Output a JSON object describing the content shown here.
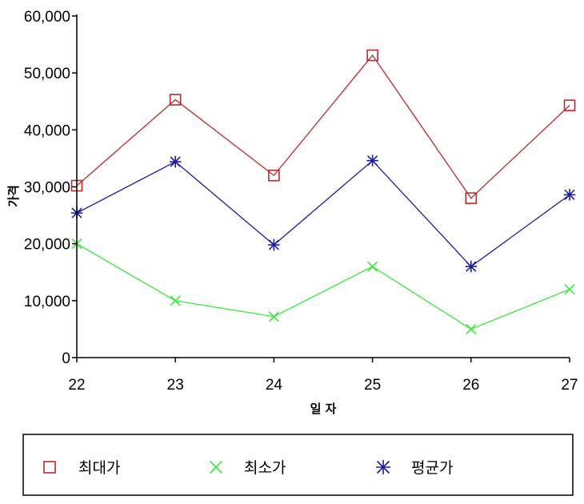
{
  "chart_data": {
    "type": "line",
    "title": "",
    "xlabel": "일 자",
    "ylabel": "가격",
    "x": [
      22,
      23,
      24,
      25,
      26,
      27
    ],
    "x_tick_labels": [
      "22",
      "23",
      "24",
      "25",
      "26",
      "27"
    ],
    "ylim": [
      0,
      60000
    ],
    "y_tick_values": [
      0,
      10000,
      20000,
      30000,
      40000,
      50000,
      60000
    ],
    "y_tick_labels": [
      "0",
      "10,000",
      "20,000",
      "30,000",
      "40,000",
      "50,000",
      "60,000"
    ],
    "grid": false,
    "legend_position": "bottom",
    "series": [
      {
        "name": "최대가",
        "marker": "square",
        "color": "#c0282d",
        "values": [
          30200,
          45300,
          32000,
          53100,
          28000,
          44300
        ]
      },
      {
        "name": "최소가",
        "marker": "x",
        "color": "#3ce63c",
        "values": [
          20000,
          10000,
          7200,
          16000,
          5000,
          12000
        ]
      },
      {
        "name": "평균가",
        "marker": "asterisk",
        "color": "#1c1ca0",
        "values": [
          25400,
          34400,
          19800,
          34600,
          16000,
          28600
        ]
      }
    ]
  }
}
